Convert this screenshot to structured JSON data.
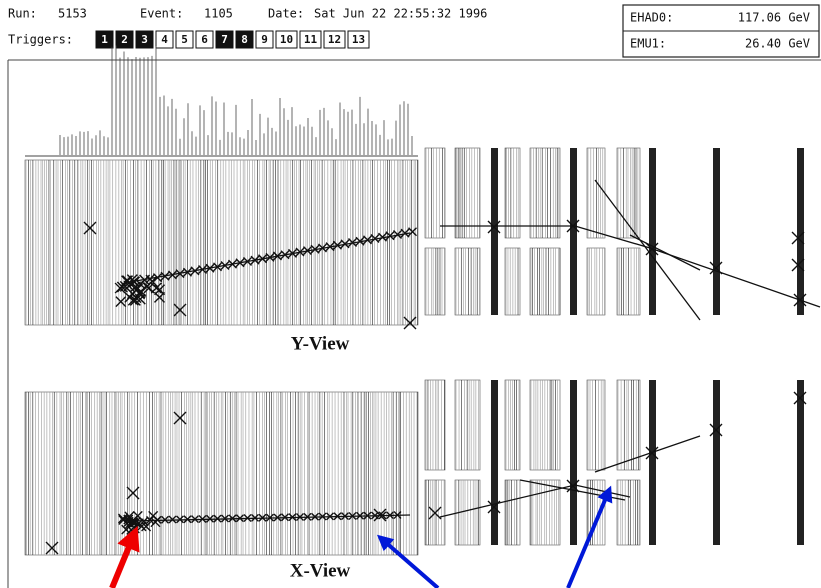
{
  "header": {
    "run_label": "Run:",
    "run": "5153",
    "event_label": "Event:",
    "event": "1105",
    "date_label": "Date:",
    "date": "Sat Jun 22 22:55:32 1996",
    "triggers_label": "Triggers:",
    "triggers": [
      {
        "label": "1",
        "active": true
      },
      {
        "label": "2",
        "active": true
      },
      {
        "label": "3",
        "active": true
      },
      {
        "label": "4",
        "active": false
      },
      {
        "label": "5",
        "active": false
      },
      {
        "label": "6",
        "active": false
      },
      {
        "label": "7",
        "active": true
      },
      {
        "label": "8",
        "active": true
      },
      {
        "label": "9",
        "active": false
      },
      {
        "label": "10",
        "active": false
      },
      {
        "label": "11",
        "active": false
      },
      {
        "label": "12",
        "active": false
      },
      {
        "label": "13",
        "active": false
      }
    ]
  },
  "energy": {
    "ehad_label": "EHAD0:",
    "ehad": "117.06 GeV",
    "emu_label": "EMU1:",
    "emu": "26.40 GeV"
  },
  "views": {
    "y_view": "Y-View",
    "x_view": "X-View"
  }
}
